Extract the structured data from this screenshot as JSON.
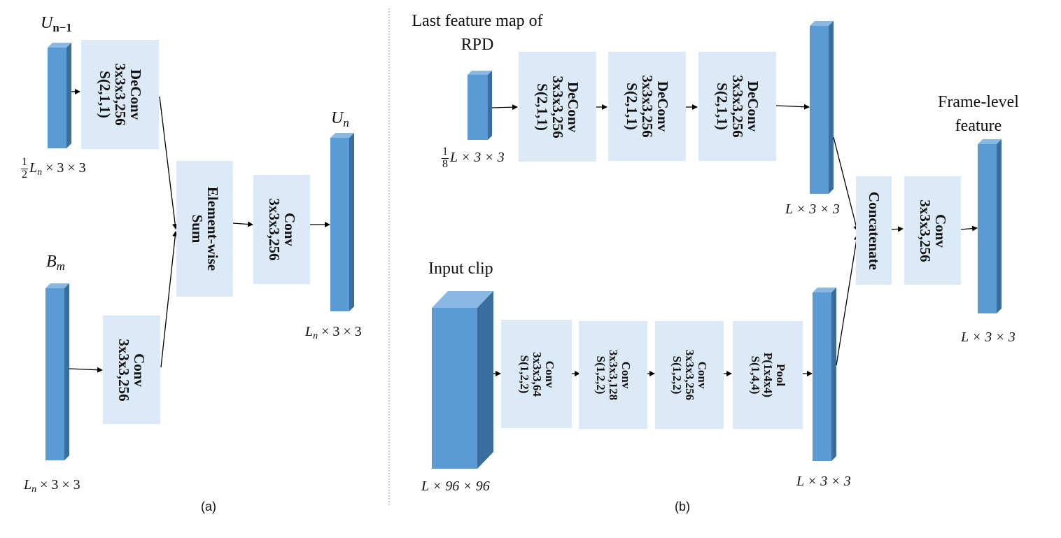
{
  "panel_a": {
    "caption": "(a)",
    "top_input": {
      "name": "U",
      "subscript": "n−1",
      "dim": "L",
      "dim_sub": "n",
      "dim_rest": " × 3 × 3",
      "frac_num": "1",
      "frac_den": "2"
    },
    "bottom_input": {
      "name": "B",
      "subscript": "m",
      "dim": "L",
      "dim_sub": "n",
      "dim_rest": " × 3 × 3"
    },
    "output": {
      "name": "U",
      "subscript": "n",
      "dim": "L",
      "dim_sub": "n",
      "dim_rest": " × 3 × 3"
    },
    "deconv": {
      "l1": "DeConv",
      "l2": "3x3x3,256",
      "l3": "S(2,1,1)"
    },
    "conv_bottom": {
      "l1": "Conv",
      "l2": "3x3x3,256"
    },
    "sum": {
      "l1": "Element-wise",
      "l2": "Sum"
    },
    "conv_out": {
      "l1": "Conv",
      "l2": "3x3x3,256"
    }
  },
  "panel_b": {
    "caption": "(b)",
    "top_title_l1": "Last feature map of",
    "top_title_l2": "RPD",
    "top_input_dim": {
      "frac_num": "1",
      "frac_den": "8",
      "rest": "L × 3 × 3"
    },
    "deconvs": [
      {
        "l1": "DeConv",
        "l2": "3x3x3,256",
        "l3": "S(2,1,1)"
      },
      {
        "l1": "DeConv",
        "l2": "3x3x3,256",
        "l3": "S(2,1,1)"
      },
      {
        "l1": "DeConv",
        "l2": "3x3x3,256",
        "l3": "S(2,1,1)"
      }
    ],
    "top_output_dim": "L × 3 × 3",
    "input_clip_label": "Input clip",
    "input_clip_dim": "L × 96 × 96",
    "bottom_blocks": [
      {
        "l1": "Conv",
        "l2": "3x3x3,64",
        "l3": "S(1,2,2)"
      },
      {
        "l1": "Conv",
        "l2": "3x3x3,128",
        "l3": "S(1,2,2)"
      },
      {
        "l1": "Conv",
        "l2": "3x3x3,256",
        "l3": "S(1,2,2)"
      },
      {
        "l1": "Pool",
        "l2": "P(1x4x4)",
        "l3": "S(1,4,4)"
      }
    ],
    "bottom_output_dim": "L × 3 × 3",
    "concat": {
      "l1": "Concatenate"
    },
    "conv_final": {
      "l1": "Conv",
      "l2": "3x3x3,256"
    },
    "frame_title_l1": "Frame-level",
    "frame_title_l2": "feature",
    "frame_dim": "L × 3 × 3"
  },
  "colors": {
    "block_face": "#5b9bd5",
    "block_side": "#3a6e9e",
    "block_top": "#8ab8e4",
    "box_fill": "#dce9f6",
    "divider": "#7fa7cf"
  }
}
